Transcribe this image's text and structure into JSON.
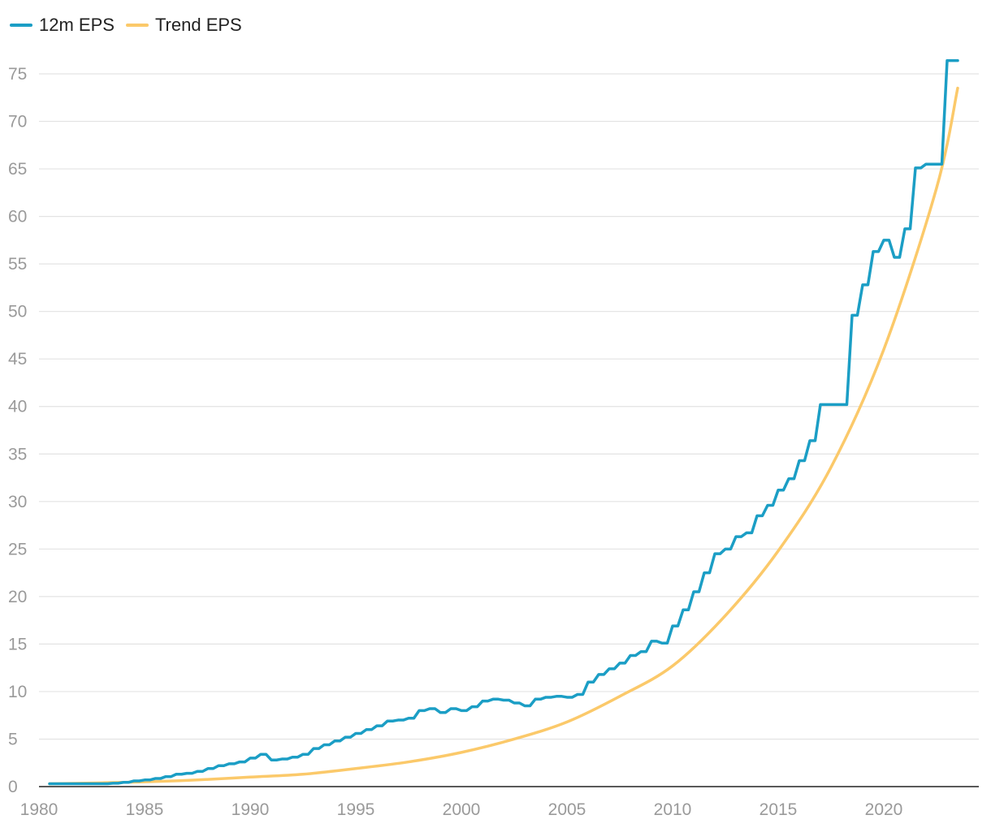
{
  "chart_data": {
    "type": "line",
    "title": "",
    "xlabel": "",
    "ylabel": "",
    "xlim": [
      1980,
      2024.5
    ],
    "ylim": [
      0,
      80
    ],
    "x_ticks": [
      1980,
      1985,
      1990,
      1995,
      2000,
      2005,
      2010,
      2015,
      2020
    ],
    "y_ticks": [
      0,
      5,
      10,
      15,
      20,
      25,
      30,
      35,
      40,
      45,
      50,
      55,
      60,
      65,
      70,
      75
    ],
    "grid": "horizontal",
    "legend_position": "top-left",
    "series": [
      {
        "name": "12m EPS",
        "color": "#1b9ec5",
        "x": [
          1980.5,
          1983.5,
          1984.0,
          1984.5,
          1985.0,
          1985.5,
          1986.0,
          1986.5,
          1987.0,
          1987.5,
          1988.0,
          1988.5,
          1989.0,
          1989.5,
          1990.0,
          1990.5,
          1991.0,
          1991.5,
          1992.0,
          1992.5,
          1993.0,
          1993.5,
          1994.0,
          1994.5,
          1995.0,
          1995.5,
          1996.0,
          1996.5,
          1997.0,
          1997.5,
          1998.0,
          1998.5,
          1999.0,
          1999.5,
          2000.0,
          2000.5,
          2001.0,
          2001.5,
          2002.0,
          2002.5,
          2003.0,
          2003.5,
          2004.0,
          2004.5,
          2005.0,
          2005.5,
          2006.0,
          2006.5,
          2007.0,
          2007.5,
          2008.0,
          2008.5,
          2009.0,
          2009.5,
          2010.0,
          2010.5,
          2011.0,
          2011.5,
          2012.0,
          2012.5,
          2013.0,
          2013.5,
          2014.0,
          2014.5,
          2015.0,
          2015.5,
          2016.0,
          2016.5,
          2017.0,
          2017.5,
          2018.0,
          2018.5,
          2019.0,
          2019.5,
          2020.0,
          2020.5,
          2021.0,
          2021.5,
          2022.0,
          2022.5,
          2023.0,
          2023.5
        ],
        "values": [
          0.3,
          0.35,
          0.45,
          0.6,
          0.7,
          0.85,
          1.05,
          1.3,
          1.4,
          1.6,
          1.9,
          2.2,
          2.4,
          2.6,
          3.0,
          3.4,
          2.8,
          2.9,
          3.1,
          3.4,
          4.0,
          4.4,
          4.8,
          5.2,
          5.6,
          6.0,
          6.4,
          6.9,
          7.0,
          7.2,
          8.0,
          8.2,
          7.8,
          8.2,
          8.0,
          8.4,
          9.0,
          9.2,
          9.1,
          8.8,
          8.5,
          9.2,
          9.4,
          9.5,
          9.4,
          9.7,
          11.0,
          11.8,
          12.4,
          13.0,
          13.8,
          14.2,
          15.3,
          15.1,
          16.9,
          18.6,
          20.5,
          22.5,
          24.5,
          25.0,
          26.3,
          26.7,
          28.5,
          29.6,
          31.2,
          32.4,
          34.3,
          36.4,
          40.2,
          40.2,
          40.2,
          49.6,
          52.8,
          56.3,
          57.5,
          55.7,
          58.7,
          65.1,
          65.5,
          65.5,
          76.4,
          76.4
        ]
      },
      {
        "name": "Trend EPS",
        "color": "#fbc96a",
        "x": [
          1980.5,
          1983.0,
          1985.0,
          1987.5,
          1990.0,
          1992.5,
          1995.0,
          1997.5,
          2000.0,
          2002.5,
          2005.0,
          2007.5,
          2010.0,
          2012.5,
          2015.0,
          2017.5,
          2020.0,
          2022.5,
          2023.5
        ],
        "values": [
          0.3,
          0.4,
          0.5,
          0.7,
          1.0,
          1.3,
          1.9,
          2.6,
          3.6,
          5.0,
          6.8,
          9.5,
          12.7,
          18.0,
          24.8,
          33.6,
          46.0,
          63.0,
          73.5
        ]
      }
    ]
  }
}
